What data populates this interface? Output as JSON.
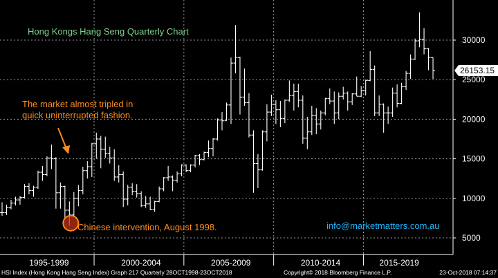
{
  "chart_data": {
    "type": "ohlc",
    "title": "Hong Kongs Hang Seng Quarterly Chart",
    "xlabel": "",
    "ylabel": "",
    "ylim": [
      2500,
      35000
    ],
    "y_ticks": [
      5000,
      10000,
      15000,
      20000,
      25000,
      30000
    ],
    "y_tick_labels": [
      "5000",
      "10000",
      "15000",
      "20000",
      "25000",
      "30000"
    ],
    "x_axis_labels": [
      "1995-1999",
      "2000-2004",
      "2005-2009",
      "2010-2014",
      "2015-2019"
    ],
    "grid": true,
    "last_value": "26153.15",
    "bars": [
      {
        "date": "1994Q4",
        "open": 8200,
        "high": 9500,
        "low": 7800,
        "close": 8200
      },
      {
        "date": "1995Q1",
        "open": 8200,
        "high": 9200,
        "low": 7900,
        "close": 8800
      },
      {
        "date": "1995Q2",
        "open": 8800,
        "high": 9800,
        "low": 8600,
        "close": 9400
      },
      {
        "date": "1995Q3",
        "open": 9400,
        "high": 10200,
        "low": 9100,
        "close": 9800
      },
      {
        "date": "1995Q4",
        "open": 9800,
        "high": 10300,
        "low": 9200,
        "close": 10100
      },
      {
        "date": "1996Q1",
        "open": 10100,
        "high": 11800,
        "low": 10000,
        "close": 11500
      },
      {
        "date": "1996Q2",
        "open": 11500,
        "high": 11900,
        "low": 10500,
        "close": 11000
      },
      {
        "date": "1996Q3",
        "open": 11000,
        "high": 11600,
        "low": 10200,
        "close": 11400
      },
      {
        "date": "1996Q4",
        "open": 11400,
        "high": 13500,
        "low": 11200,
        "close": 13300
      },
      {
        "date": "1997Q1",
        "open": 13300,
        "high": 14100,
        "low": 12200,
        "close": 13000
      },
      {
        "date": "1997Q2",
        "open": 13000,
        "high": 15300,
        "low": 12800,
        "close": 15100
      },
      {
        "date": "1997Q3",
        "open": 15100,
        "high": 16800,
        "low": 13700,
        "close": 15000
      },
      {
        "date": "1997Q4",
        "open": 15000,
        "high": 15200,
        "low": 8700,
        "close": 10700
      },
      {
        "date": "1998Q1",
        "open": 10700,
        "high": 12000,
        "low": 8700,
        "close": 11500
      },
      {
        "date": "1998Q2",
        "open": 11500,
        "high": 11600,
        "low": 7500,
        "close": 8500
      },
      {
        "date": "1998Q3",
        "open": 8500,
        "high": 9600,
        "low": 6540,
        "close": 7900
      },
      {
        "date": "1998Q4",
        "open": 7900,
        "high": 10800,
        "low": 7800,
        "close": 10000
      },
      {
        "date": "1999Q1",
        "open": 10000,
        "high": 11700,
        "low": 9000,
        "close": 11000
      },
      {
        "date": "1999Q2",
        "open": 11000,
        "high": 14000,
        "low": 10500,
        "close": 13500
      },
      {
        "date": "1999Q3",
        "open": 13500,
        "high": 14700,
        "low": 12500,
        "close": 14000
      },
      {
        "date": "1999Q4",
        "open": 14000,
        "high": 17000,
        "low": 12700,
        "close": 16900
      },
      {
        "date": "2000Q1",
        "open": 16900,
        "high": 18300,
        "low": 15000,
        "close": 17500
      },
      {
        "date": "2000Q2",
        "open": 17500,
        "high": 17900,
        "low": 13800,
        "close": 16200
      },
      {
        "date": "2000Q3",
        "open": 16200,
        "high": 17800,
        "low": 15100,
        "close": 15700
      },
      {
        "date": "2000Q4",
        "open": 15700,
        "high": 16500,
        "low": 14400,
        "close": 15100
      },
      {
        "date": "2001Q1",
        "open": 15100,
        "high": 16200,
        "low": 12200,
        "close": 12700
      },
      {
        "date": "2001Q2",
        "open": 12700,
        "high": 14200,
        "low": 12000,
        "close": 13000
      },
      {
        "date": "2001Q3",
        "open": 13000,
        "high": 13400,
        "low": 8900,
        "close": 9900
      },
      {
        "date": "2001Q4",
        "open": 9900,
        "high": 11700,
        "low": 9100,
        "close": 11400
      },
      {
        "date": "2002Q1",
        "open": 11400,
        "high": 11900,
        "low": 10400,
        "close": 10900
      },
      {
        "date": "2002Q2",
        "open": 10900,
        "high": 11800,
        "low": 10100,
        "close": 10600
      },
      {
        "date": "2002Q3",
        "open": 10600,
        "high": 10900,
        "low": 8900,
        "close": 9100
      },
      {
        "date": "2002Q4",
        "open": 9100,
        "high": 10300,
        "low": 8800,
        "close": 9300
      },
      {
        "date": "2003Q1",
        "open": 9300,
        "high": 10200,
        "low": 8500,
        "close": 8600
      },
      {
        "date": "2003Q2",
        "open": 8600,
        "high": 9700,
        "low": 8300,
        "close": 9600
      },
      {
        "date": "2003Q3",
        "open": 9600,
        "high": 11500,
        "low": 9500,
        "close": 11200
      },
      {
        "date": "2003Q4",
        "open": 11200,
        "high": 12700,
        "low": 10900,
        "close": 12600
      },
      {
        "date": "2004Q1",
        "open": 12600,
        "high": 14100,
        "low": 12200,
        "close": 12700
      },
      {
        "date": "2004Q2",
        "open": 12700,
        "high": 12900,
        "low": 10900,
        "close": 12300
      },
      {
        "date": "2004Q3",
        "open": 12300,
        "high": 13400,
        "low": 12000,
        "close": 13100
      },
      {
        "date": "2004Q4",
        "open": 13100,
        "high": 14300,
        "low": 12800,
        "close": 14200
      },
      {
        "date": "2005Q1",
        "open": 14200,
        "high": 14300,
        "low": 13300,
        "close": 13500
      },
      {
        "date": "2005Q2",
        "open": 13500,
        "high": 14300,
        "low": 13300,
        "close": 14200
      },
      {
        "date": "2005Q3",
        "open": 14200,
        "high": 15500,
        "low": 13900,
        "close": 15400
      },
      {
        "date": "2005Q4",
        "open": 15400,
        "high": 15600,
        "low": 14200,
        "close": 14900
      },
      {
        "date": "2006Q1",
        "open": 14900,
        "high": 15900,
        "low": 14800,
        "close": 15800
      },
      {
        "date": "2006Q2",
        "open": 15800,
        "high": 17300,
        "low": 15200,
        "close": 16300
      },
      {
        "date": "2006Q3",
        "open": 16300,
        "high": 17600,
        "low": 15300,
        "close": 17500
      },
      {
        "date": "2006Q4",
        "open": 17500,
        "high": 20100,
        "low": 17300,
        "close": 19900
      },
      {
        "date": "2007Q1",
        "open": 19900,
        "high": 20900,
        "low": 18600,
        "close": 19800
      },
      {
        "date": "2007Q2",
        "open": 19800,
        "high": 22100,
        "low": 19800,
        "close": 21800
      },
      {
        "date": "2007Q3",
        "open": 21800,
        "high": 27800,
        "low": 19400,
        "close": 27100
      },
      {
        "date": "2007Q4",
        "open": 27100,
        "high": 31900,
        "low": 25800,
        "close": 27800
      },
      {
        "date": "2008Q1",
        "open": 27800,
        "high": 27900,
        "low": 20600,
        "close": 22800
      },
      {
        "date": "2008Q2",
        "open": 22800,
        "high": 26400,
        "low": 21700,
        "close": 22100
      },
      {
        "date": "2008Q3",
        "open": 22100,
        "high": 23300,
        "low": 17700,
        "close": 18000
      },
      {
        "date": "2008Q4",
        "open": 18000,
        "high": 18600,
        "low": 10700,
        "close": 14400
      },
      {
        "date": "2009Q1",
        "open": 14400,
        "high": 15600,
        "low": 11300,
        "close": 13600
      },
      {
        "date": "2009Q2",
        "open": 13600,
        "high": 18600,
        "low": 13500,
        "close": 18400
      },
      {
        "date": "2009Q3",
        "open": 18400,
        "high": 21900,
        "low": 17200,
        "close": 20900
      },
      {
        "date": "2009Q4",
        "open": 20900,
        "high": 23100,
        "low": 20400,
        "close": 21900
      },
      {
        "date": "2010Q1",
        "open": 21900,
        "high": 22400,
        "low": 19400,
        "close": 21200
      },
      {
        "date": "2010Q2",
        "open": 21200,
        "high": 22300,
        "low": 19000,
        "close": 20100
      },
      {
        "date": "2010Q3",
        "open": 20100,
        "high": 22500,
        "low": 19500,
        "close": 22400
      },
      {
        "date": "2010Q4",
        "open": 22400,
        "high": 24900,
        "low": 22200,
        "close": 23000
      },
      {
        "date": "2011Q1",
        "open": 23000,
        "high": 24500,
        "low": 21100,
        "close": 23500
      },
      {
        "date": "2011Q2",
        "open": 23500,
        "high": 24500,
        "low": 21500,
        "close": 22400
      },
      {
        "date": "2011Q3",
        "open": 22400,
        "high": 23000,
        "low": 16900,
        "close": 17600
      },
      {
        "date": "2011Q4",
        "open": 17600,
        "high": 20300,
        "low": 16200,
        "close": 18400
      },
      {
        "date": "2012Q1",
        "open": 18400,
        "high": 21700,
        "low": 18000,
        "close": 20500
      },
      {
        "date": "2012Q2",
        "open": 20500,
        "high": 21400,
        "low": 18100,
        "close": 19400
      },
      {
        "date": "2012Q3",
        "open": 19400,
        "high": 21100,
        "low": 18700,
        "close": 20800
      },
      {
        "date": "2012Q4",
        "open": 20800,
        "high": 22700,
        "low": 20500,
        "close": 22600
      },
      {
        "date": "2013Q1",
        "open": 22600,
        "high": 23900,
        "low": 21900,
        "close": 22300
      },
      {
        "date": "2013Q2",
        "open": 22300,
        "high": 23500,
        "low": 19400,
        "close": 20800
      },
      {
        "date": "2013Q3",
        "open": 20800,
        "high": 23400,
        "low": 20000,
        "close": 22900
      },
      {
        "date": "2013Q4",
        "open": 22900,
        "high": 24100,
        "low": 22500,
        "close": 23300
      },
      {
        "date": "2014Q1",
        "open": 23300,
        "high": 23500,
        "low": 21100,
        "close": 22200
      },
      {
        "date": "2014Q2",
        "open": 22200,
        "high": 23300,
        "low": 21800,
        "close": 23200
      },
      {
        "date": "2014Q3",
        "open": 23200,
        "high": 25400,
        "low": 22900,
        "close": 22900
      },
      {
        "date": "2014Q4",
        "open": 22900,
        "high": 24200,
        "low": 22800,
        "close": 23600
      },
      {
        "date": "2015Q1",
        "open": 23600,
        "high": 25000,
        "low": 23000,
        "close": 24900
      },
      {
        "date": "2015Q2",
        "open": 24900,
        "high": 28600,
        "low": 24800,
        "close": 26300
      },
      {
        "date": "2015Q3",
        "open": 26300,
        "high": 26800,
        "low": 20400,
        "close": 20800
      },
      {
        "date": "2015Q4",
        "open": 20800,
        "high": 23000,
        "low": 20400,
        "close": 21900
      },
      {
        "date": "2016Q1",
        "open": 21900,
        "high": 22000,
        "low": 18300,
        "close": 20800
      },
      {
        "date": "2016Q2",
        "open": 20800,
        "high": 21600,
        "low": 19400,
        "close": 20800
      },
      {
        "date": "2016Q3",
        "open": 20800,
        "high": 24000,
        "low": 20300,
        "close": 23300
      },
      {
        "date": "2016Q4",
        "open": 23300,
        "high": 24400,
        "low": 21500,
        "close": 22000
      },
      {
        "date": "2017Q1",
        "open": 22000,
        "high": 24600,
        "low": 21900,
        "close": 24100
      },
      {
        "date": "2017Q2",
        "open": 24100,
        "high": 26100,
        "low": 23700,
        "close": 25800
      },
      {
        "date": "2017Q3",
        "open": 25800,
        "high": 28200,
        "low": 25100,
        "close": 27600
      },
      {
        "date": "2017Q4",
        "open": 27600,
        "high": 30200,
        "low": 27500,
        "close": 29900
      },
      {
        "date": "2018Q1",
        "open": 29900,
        "high": 33500,
        "low": 29100,
        "close": 30100
      },
      {
        "date": "2018Q2",
        "open": 30100,
        "high": 31500,
        "low": 28200,
        "close": 28900
      },
      {
        "date": "2018Q3",
        "open": 28900,
        "high": 29000,
        "low": 26200,
        "close": 27800
      },
      {
        "date": "2018Q4",
        "open": 27800,
        "high": 27800,
        "low": 25100,
        "close": 26153
      }
    ],
    "annotations": [
      {
        "text_lines": [
          "The market almost tripled in",
          "quick uninterrupted fashion."
        ],
        "color": "#ff8c1a"
      },
      {
        "text": "Chinese intervention, August 1998.",
        "color": "#ff8c1a",
        "marker_date": "1998Q3",
        "marker_value": 6600
      }
    ],
    "watermark": "info@marketmatters.com.au",
    "footer_left": "HSI Index (Hong Kong Hang Seng Index) Graph 217  Quarterly 28OCT1998-23OCT2018",
    "footer_mid": "Copyright© 2018 Bloomberg Finance L.P.",
    "footer_right": "23-Oct-2018 07:14:37",
    "colors": {
      "background": "#000000",
      "bars": "#ffffff",
      "grid": "#9a9a9a",
      "title": "#7fd18b",
      "annotation": "#ff8c1a",
      "watermark": "#1fb6ff",
      "last_value_box": "#ffffff"
    }
  }
}
